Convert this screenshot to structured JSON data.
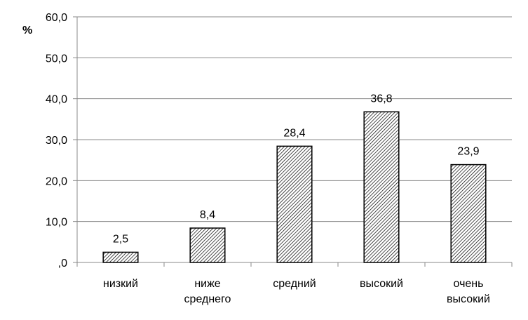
{
  "chart_data": {
    "type": "bar",
    "categories": [
      [
        "низкий"
      ],
      [
        "ниже",
        "среднего"
      ],
      [
        "средний"
      ],
      [
        "высокий"
      ],
      [
        "очень",
        "высокий"
      ]
    ],
    "values": [
      2.5,
      8.4,
      28.4,
      36.8,
      23.9
    ],
    "data_labels": [
      "2,5",
      "8,4",
      "28,4",
      "36,8",
      "23,9"
    ],
    "ylabel": "%",
    "ylim": [
      0,
      60
    ],
    "y_ticks": [
      0,
      10,
      20,
      30,
      40,
      50,
      60
    ],
    "y_tick_labels": [
      ",0",
      "10,0",
      "20,0",
      "30,0",
      "40,0",
      "50,0",
      "60,0"
    ],
    "grid": true,
    "legend": "none",
    "bar_fill": "hatched-diagonal",
    "colors": {
      "bar_stroke": "#000000",
      "hatch": "#000000",
      "grid": "#888888",
      "axis": "#888888"
    }
  }
}
